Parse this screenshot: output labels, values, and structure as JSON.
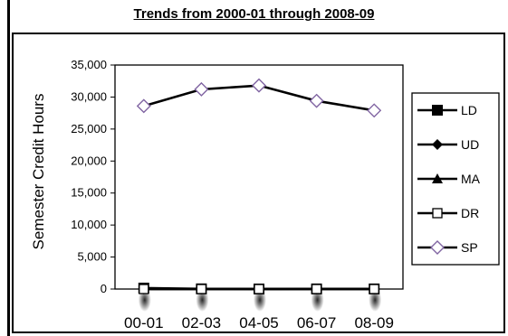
{
  "title": "Trends from 2000-01 through 2008-09",
  "chart_data": {
    "type": "line",
    "title": "Trends from 2000-01 through 2008-09",
    "xlabel": "",
    "ylabel": "Semester Credit Hours",
    "categories": [
      "00-01",
      "02-03",
      "04-05",
      "06-07",
      "08-09"
    ],
    "ylim": [
      0,
      35000
    ],
    "yticks": [
      "0",
      "5,000",
      "10,000",
      "15,000",
      "20,000",
      "25,000",
      "30,000",
      "35,000"
    ],
    "grid": false,
    "legend_position": "right",
    "series": [
      {
        "name": "LD",
        "marker": "square-filled",
        "color": "#000000",
        "values": [
          150,
          30,
          10,
          20,
          20
        ]
      },
      {
        "name": "UD",
        "marker": "diamond-filled",
        "color": "#000000",
        "values": [
          0,
          0,
          0,
          0,
          0
        ]
      },
      {
        "name": "MA",
        "marker": "triangle-filled",
        "color": "#000000",
        "values": [
          0,
          0,
          0,
          0,
          0
        ]
      },
      {
        "name": "DR",
        "marker": "square-open",
        "color": "#000000",
        "values": [
          0,
          0,
          0,
          0,
          0
        ]
      },
      {
        "name": "SP",
        "marker": "diamond-open",
        "color": "#8064a2",
        "values": [
          28600,
          31200,
          31800,
          29400,
          27900
        ]
      }
    ]
  }
}
